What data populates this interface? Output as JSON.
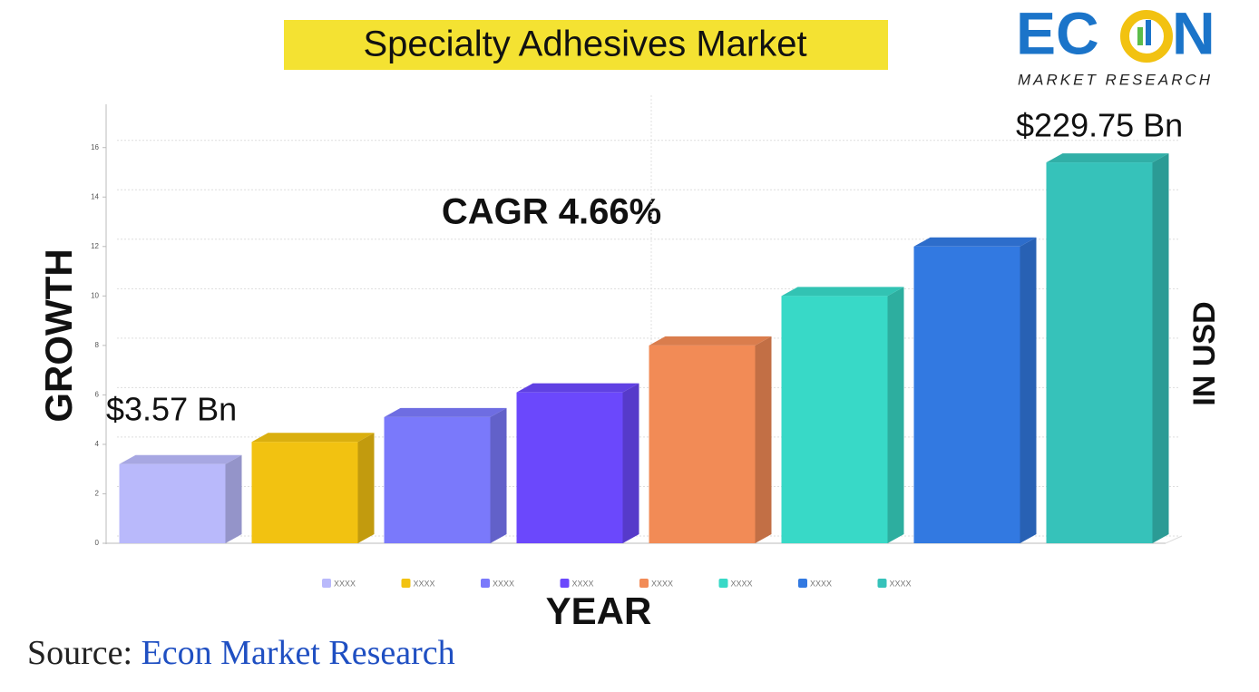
{
  "chart_data": {
    "type": "bar3d",
    "title": "Specialty Adhesives Market",
    "y_label": "GROWTH",
    "y2_label": "IN USD",
    "x_label": "YEAR",
    "annotations": [
      "CAGR 4.66%",
      "$3.57 Bn",
      "$229.75 Bn"
    ],
    "categories": [
      "XXXX",
      "XXXX",
      "XXXX",
      "XXXX",
      "XXXX",
      "XXXX",
      "XXXX",
      "XXXX"
    ],
    "values": [
      3.2,
      4.1,
      5.1,
      6.1,
      8,
      10,
      12,
      15.4
    ],
    "colors": [
      "#b9b9fb",
      "#f2c211",
      "#7a79fb",
      "#6b48fc",
      "#f28b56",
      "#38d9c7",
      "#3279e1",
      "#36c2ba"
    ],
    "ylim": [
      0,
      17.75
    ],
    "yticks": [
      0,
      2,
      4,
      6,
      8,
      10,
      12,
      14,
      16
    ],
    "grid": true,
    "legend": "bottom"
  },
  "source": {
    "prefix": "Source:",
    "name": "Econ Market Research"
  },
  "logo": {
    "left": "EC",
    "right": "N",
    "tagline": "MARKET RESEARCH"
  }
}
